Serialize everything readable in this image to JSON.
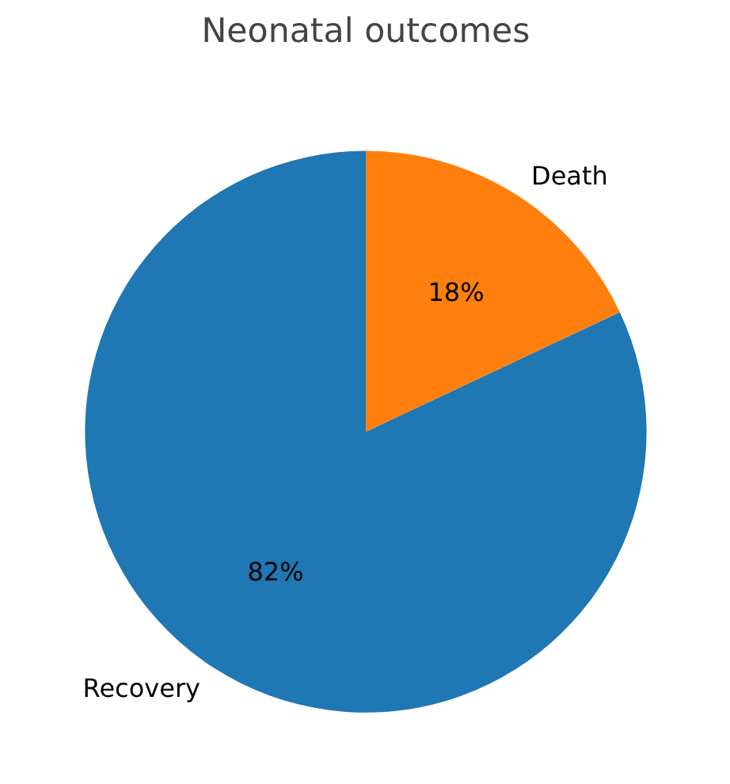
{
  "chart_data": {
    "type": "pie",
    "title": "Neonatal outcomes",
    "categories": [
      "Recovery",
      "Death"
    ],
    "values": [
      82,
      18
    ],
    "colors": [
      "#1f77b4",
      "#ff7f0e"
    ],
    "value_labels": [
      "82%",
      "18%"
    ]
  }
}
